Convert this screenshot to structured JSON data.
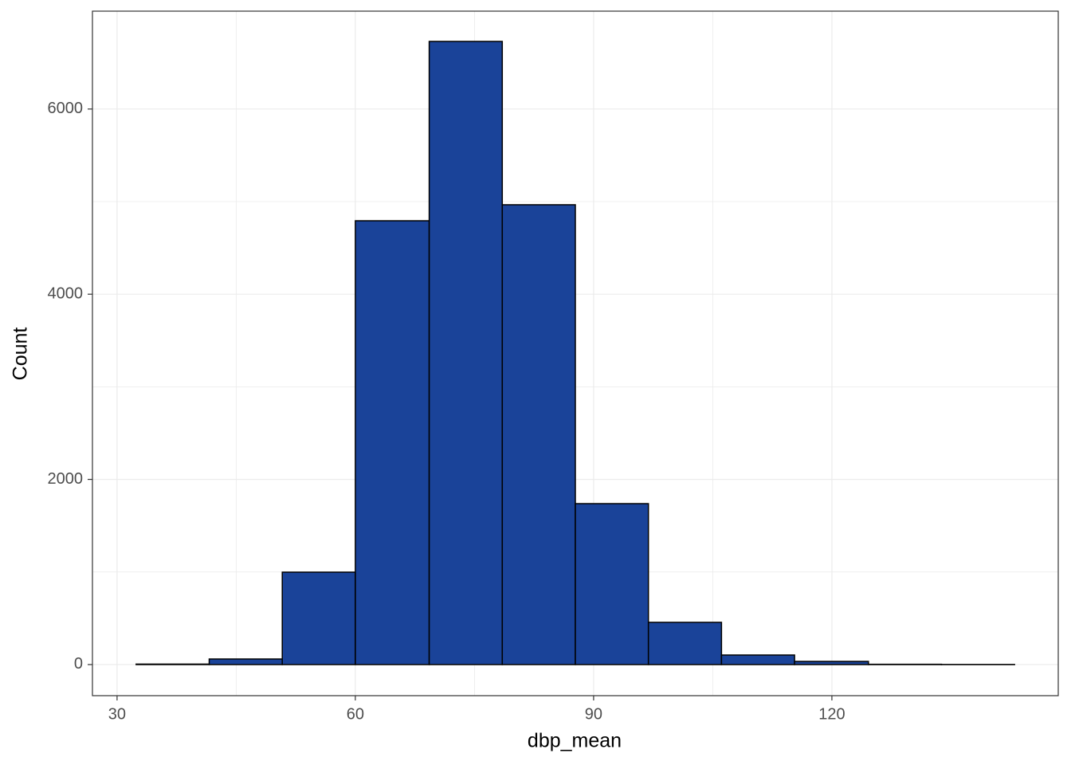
{
  "chart_data": {
    "type": "histogram",
    "x_label": "dbp_mean",
    "y_label": "Count",
    "bins": [
      32.4,
      41.6,
      50.8,
      60.0,
      69.3,
      78.5,
      87.7,
      96.9,
      106.1,
      115.3,
      124.6,
      133.8,
      143.0
    ],
    "values": [
      5,
      60,
      998,
      4793,
      6730,
      4966,
      1738,
      456,
      103,
      34,
      3,
      1
    ],
    "color": "#1a4399",
    "edge_color": "#000000",
    "xlim": [
      26.9,
      148.5
    ],
    "xticks": [
      30,
      60,
      90,
      120
    ],
    "ylim": [
      -336,
      7057
    ],
    "yticks": [
      0,
      2000,
      4000,
      6000
    ],
    "grid": true,
    "minor_grid": true
  }
}
